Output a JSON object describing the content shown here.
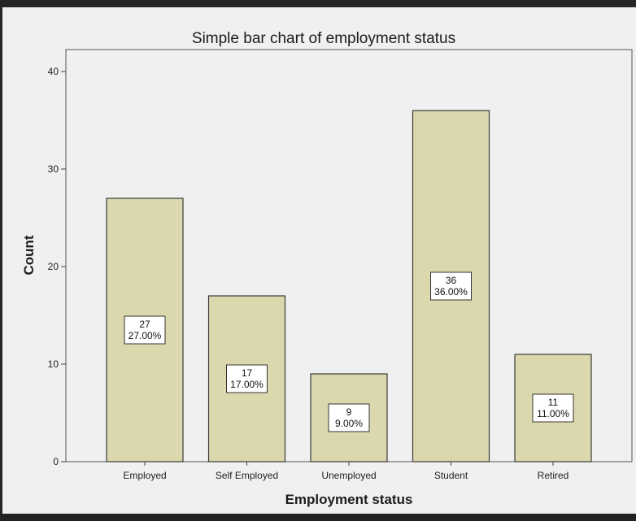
{
  "chart_data": {
    "type": "bar",
    "title": "Simple bar chart of employment status",
    "xlabel": "Employment status",
    "ylabel": "Count",
    "categories": [
      "Employed",
      "Self Employed",
      "Unemployed",
      "Student",
      "Retired"
    ],
    "values": [
      27,
      17,
      9,
      36,
      11
    ],
    "percent_labels": [
      "27.00%",
      "17.00%",
      "9.00%",
      "36.00%",
      "11.00%"
    ],
    "ylim": [
      0,
      40
    ],
    "yticks": [
      0,
      10,
      20,
      30,
      40
    ],
    "grid": false,
    "legend": "none",
    "colors": {
      "bar_fill": "#dbd8ad",
      "bar_stroke": "#3a3a3a",
      "plot_background": "#f0f0f0",
      "frame_background": "#222222"
    }
  }
}
